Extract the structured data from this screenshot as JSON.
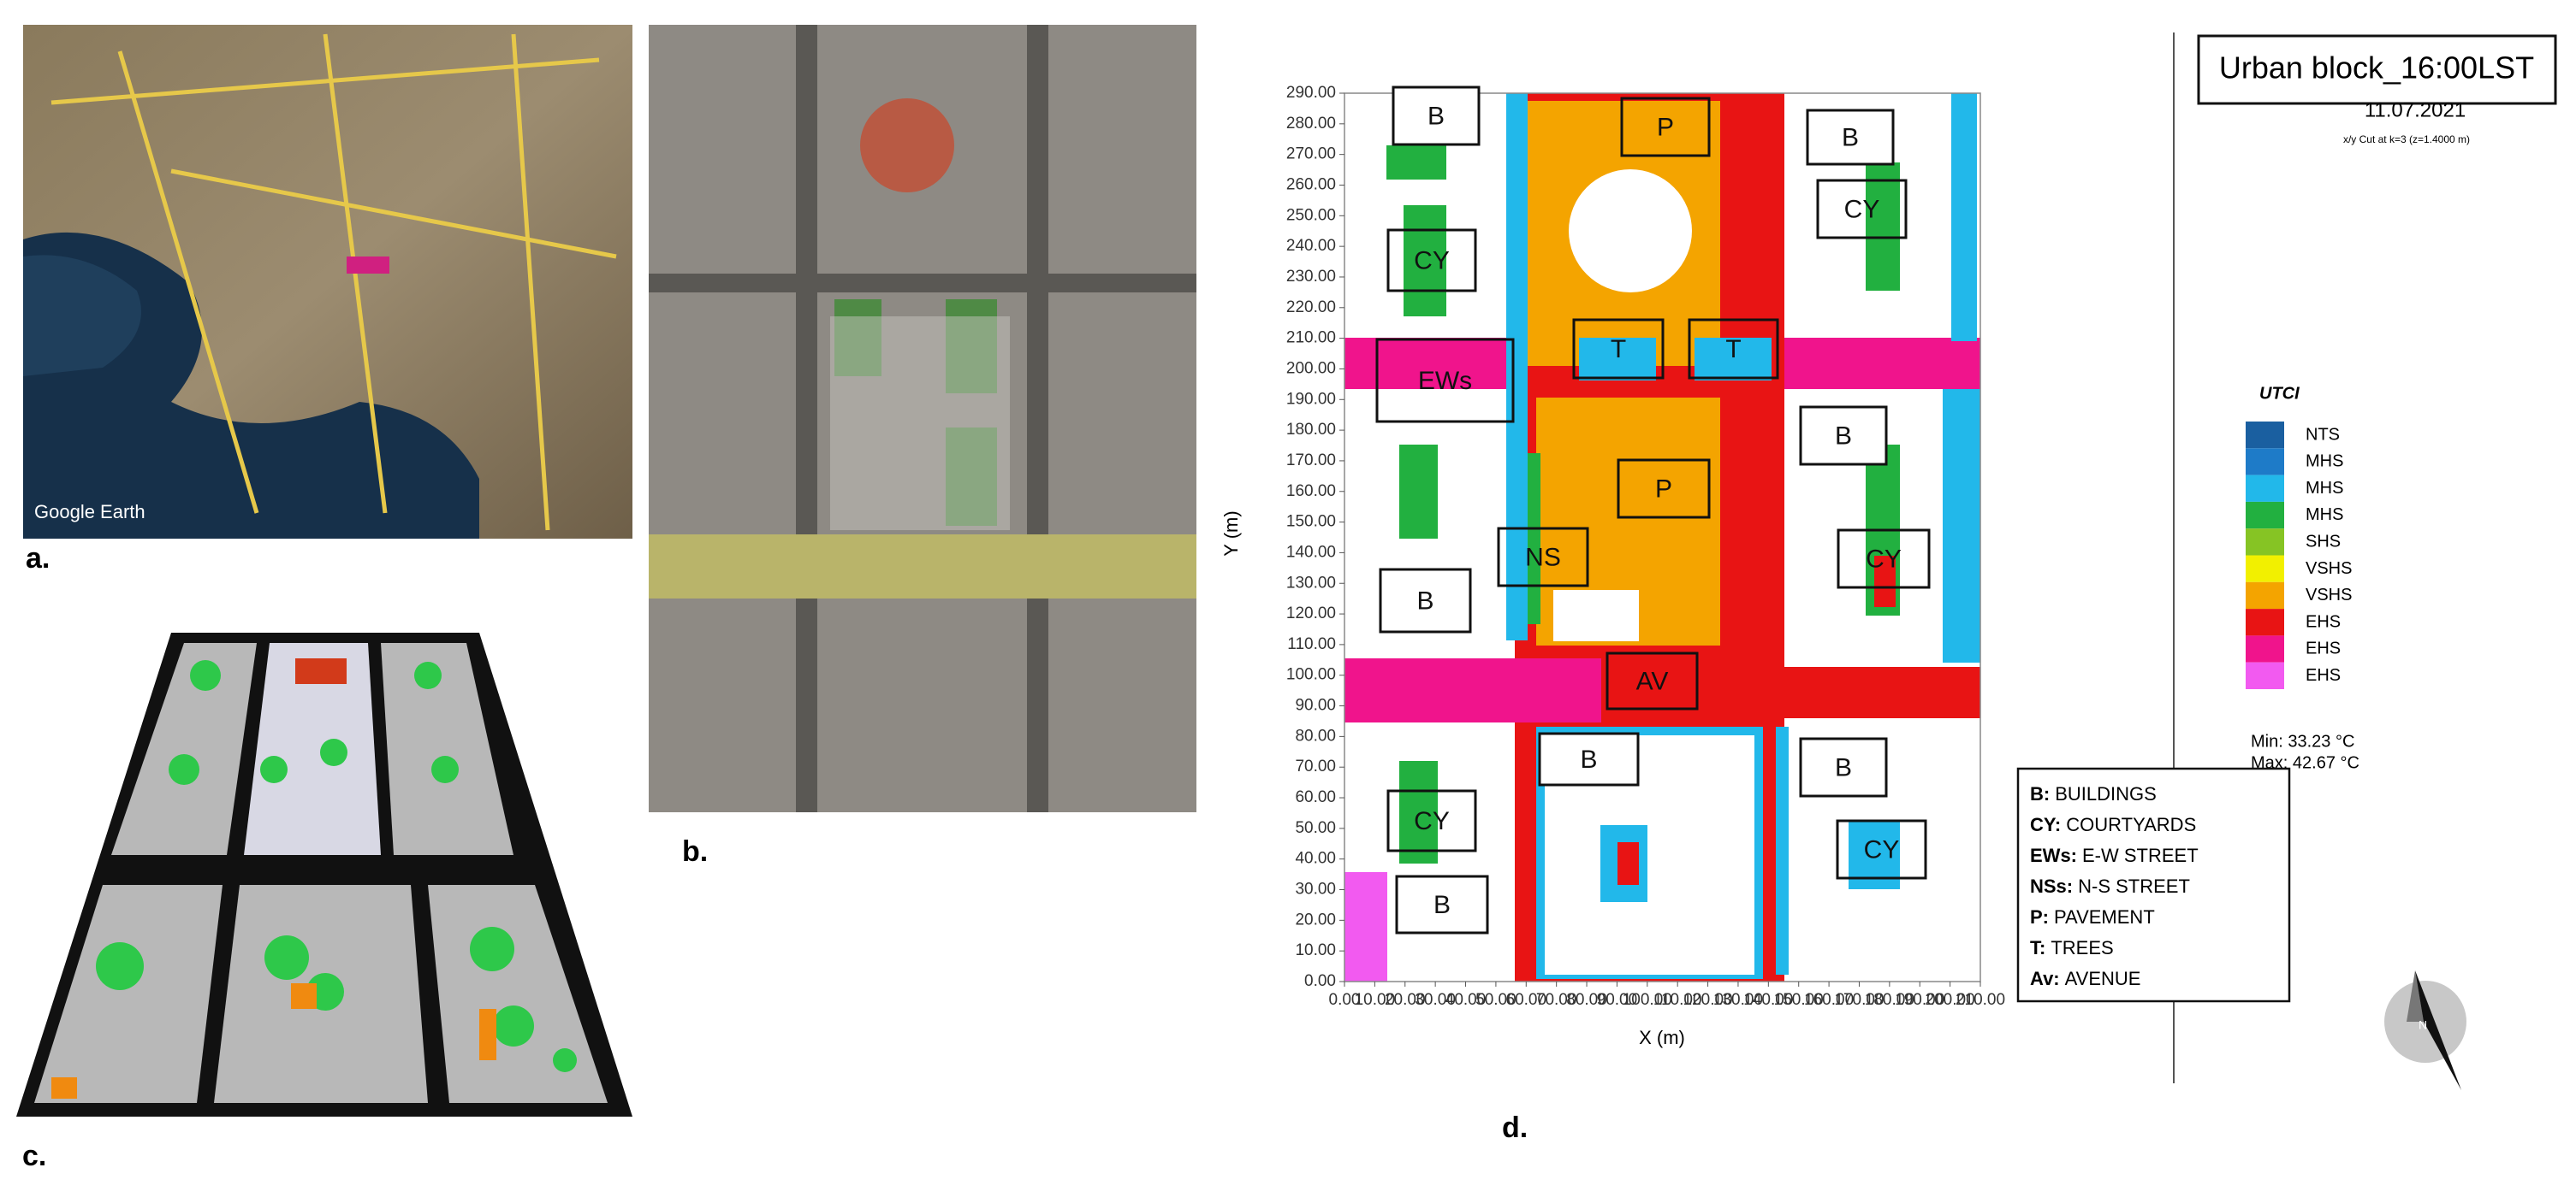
{
  "panel_labels": [
    "a.",
    "b.",
    "c.",
    "d."
  ],
  "panel_a": {
    "watermark": "Google Earth"
  },
  "panel_d": {
    "title": "Urban block_16:00LST",
    "date": "11.07.2021",
    "cut": "x/y Cut at k=3 (z=1.4000 m)",
    "x_label": "X (m)",
    "y_label": "Y (m)",
    "xlim": [
      0,
      210
    ],
    "ylim": [
      0,
      290
    ],
    "xticks": [
      {
        "value": 0,
        "label": "0.00"
      },
      {
        "value": 10,
        "label": "10.00"
      },
      {
        "value": 20,
        "label": "20.00"
      },
      {
        "value": 30,
        "label": "30.00"
      },
      {
        "value": 40,
        "label": "40.00"
      },
      {
        "value": 50,
        "label": "50.00"
      },
      {
        "value": 60,
        "label": "60.00"
      },
      {
        "value": 70,
        "label": "70.00"
      },
      {
        "value": 80,
        "label": "80.00"
      },
      {
        "value": 90,
        "label": "90.00"
      },
      {
        "value": 100,
        "label": "100.00"
      },
      {
        "value": 110,
        "label": "110.00"
      },
      {
        "value": 120,
        "label": "120.00"
      },
      {
        "value": 130,
        "label": "130.00"
      },
      {
        "value": 140,
        "label": "140.00"
      },
      {
        "value": 150,
        "label": "150.00"
      },
      {
        "value": 160,
        "label": "160.00"
      },
      {
        "value": 170,
        "label": "170.00"
      },
      {
        "value": 180,
        "label": "180.00"
      },
      {
        "value": 190,
        "label": "190.00"
      },
      {
        "value": 200,
        "label": "200.00"
      },
      {
        "value": 210,
        "label": "210.00"
      }
    ],
    "yticks": [
      {
        "value": 0,
        "label": "0.00"
      },
      {
        "value": 10,
        "label": "10.00"
      },
      {
        "value": 20,
        "label": "20.00"
      },
      {
        "value": 30,
        "label": "30.00"
      },
      {
        "value": 40,
        "label": "40.00"
      },
      {
        "value": 50,
        "label": "50.00"
      },
      {
        "value": 60,
        "label": "60.00"
      },
      {
        "value": 70,
        "label": "70.00"
      },
      {
        "value": 80,
        "label": "80.00"
      },
      {
        "value": 90,
        "label": "90.00"
      },
      {
        "value": 100,
        "label": "100.00"
      },
      {
        "value": 110,
        "label": "110.00"
      },
      {
        "value": 120,
        "label": "120.00"
      },
      {
        "value": 130,
        "label": "130.00"
      },
      {
        "value": 140,
        "label": "140.00"
      },
      {
        "value": 150,
        "label": "150.00"
      },
      {
        "value": 160,
        "label": "160.00"
      },
      {
        "value": 170,
        "label": "170.00"
      },
      {
        "value": 180,
        "label": "180.00"
      },
      {
        "value": 190,
        "label": "190.00"
      },
      {
        "value": 200,
        "label": "200.00"
      },
      {
        "value": 210,
        "label": "210.00"
      },
      {
        "value": 220,
        "label": "220.00"
      },
      {
        "value": 230,
        "label": "230.00"
      },
      {
        "value": 240,
        "label": "240.00"
      },
      {
        "value": 250,
        "label": "250.00"
      },
      {
        "value": 260,
        "label": "260.00"
      },
      {
        "value": 270,
        "label": "270.00"
      },
      {
        "value": 280,
        "label": "280.00"
      },
      {
        "value": 290,
        "label": "290.00"
      }
    ],
    "map_labels": [
      "B",
      "CY",
      "EWs",
      "P",
      "T",
      "T",
      "P",
      "NS",
      "B",
      "AV",
      "B",
      "CY",
      "B",
      "B",
      "CY",
      "B",
      "CY",
      "B",
      "CY"
    ],
    "legend_title": "UTCI",
    "legend": [
      {
        "name": "NTS",
        "color": "#1a5fa0"
      },
      {
        "name": "MHS",
        "color": "#1e7bc8"
      },
      {
        "name": "MHS",
        "color": "#22b8ea"
      },
      {
        "name": "MHS",
        "color": "#22b040"
      },
      {
        "name": "SHS",
        "color": "#86c424"
      },
      {
        "name": "VSHS",
        "color": "#f2f000"
      },
      {
        "name": "VSHS",
        "color": "#f4a400"
      },
      {
        "name": "EHS",
        "color": "#e81414"
      },
      {
        "name": "EHS",
        "color": "#f0148c"
      },
      {
        "name": "EHS",
        "color": "#f25af0"
      }
    ],
    "min": "Min: 33.23 °C",
    "max": "Max: 42.67 °C",
    "key": [
      {
        "key": "B:",
        "text": "BUILDINGS"
      },
      {
        "key": "CY:",
        "text": "COURTYARDS"
      },
      {
        "key": "EWs:",
        "text": "E-W STREET"
      },
      {
        "key": "NSs:",
        "text": "N-S STREET"
      },
      {
        "key": "P:",
        "text": "PAVEMENT"
      },
      {
        "key": "T:",
        "text": "TREES"
      },
      {
        "key": "Av:",
        "text": "AVENUE"
      }
    ],
    "north": "N"
  }
}
